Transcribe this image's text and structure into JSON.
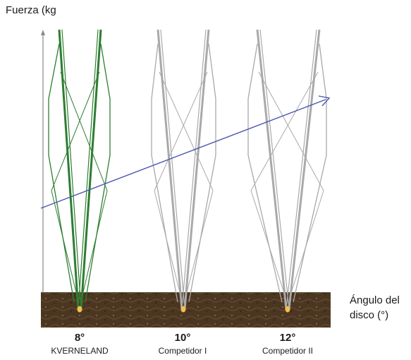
{
  "y_axis_label": "Fuerza  (kg",
  "x_axis_label_line1": "Ángulo del",
  "x_axis_label_line2": "disco (°)",
  "discs": [
    {
      "angle": "8°",
      "name": "KVERNELAND",
      "color": "#2e7d32"
    },
    {
      "angle": "10°",
      "name": "Competidor I",
      "color": "#a9a9a9"
    },
    {
      "angle": "12°",
      "name": "Competidor II",
      "color": "#a9a9a9"
    }
  ],
  "colors": {
    "trend_arrow": "#4a56b0",
    "soil": "#4b3621",
    "axis": "#8a8a8a",
    "tip": "#f2c14e"
  }
}
